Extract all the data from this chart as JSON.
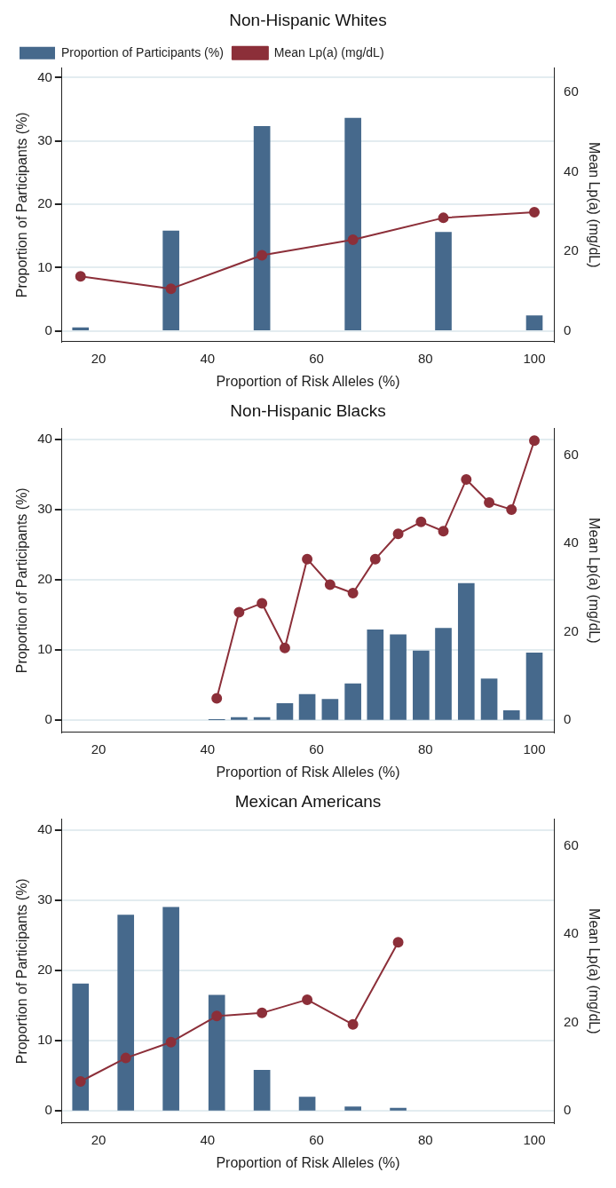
{
  "chart_data": [
    {
      "type": "bar",
      "title": "Non-Hispanic Whites",
      "xlabel": "Proportion of Risk Alleles (%)",
      "ylabel": "Proportion of Participants (%)",
      "y2label": "Mean Lp(a) (mg/dL)",
      "xlim": [
        13.3,
        103.6
      ],
      "xticks": [
        20,
        40,
        60,
        80,
        100
      ],
      "ylim": [
        -1.7,
        41.5
      ],
      "yticks": [
        0,
        10,
        20,
        30,
        40
      ],
      "y2lim": [
        -2.7,
        66
      ],
      "y2ticks": [
        0,
        20,
        40,
        60
      ],
      "grid": "y",
      "legend": "top left",
      "marker": "circle",
      "series": [
        {
          "name": "Proportion of Participants (%)",
          "color": "#46698c",
          "x": [
            16.7,
            33.3,
            50,
            66.7,
            83.3,
            100
          ],
          "values": [
            0.5,
            15.8,
            32.3,
            33.6,
            15.6,
            2.4
          ]
        },
        {
          "name": "Mean Lp(a) (mg/dL)",
          "type": "line",
          "axis": "y2",
          "color": "#8c2f39",
          "x": [
            16.7,
            33.3,
            50,
            66.7,
            83.3,
            100
          ],
          "values": [
            13.7,
            10.6,
            19.0,
            22.9,
            28.4,
            29.8
          ]
        }
      ]
    },
    {
      "type": "bar",
      "title": "Non-Hispanic Blacks",
      "xlabel": "Proportion of Risk Alleles (%)",
      "ylabel": "Proportion of Participants (%)",
      "y2label": "Mean Lp(a) (mg/dL)",
      "xlim": [
        13.3,
        103.6
      ],
      "xticks": [
        20,
        40,
        60,
        80,
        100
      ],
      "ylim": [
        -1.7,
        41.5
      ],
      "yticks": [
        0,
        10,
        20,
        30,
        40
      ],
      "y2lim": [
        -2.7,
        66
      ],
      "y2ticks": [
        0,
        20,
        40,
        60
      ],
      "grid": "y",
      "marker": "circle",
      "series": [
        {
          "color": "#46698c",
          "x": [
            41.7,
            45.8,
            50,
            54.2,
            58.3,
            62.5,
            66.7,
            70.8,
            75,
            79.2,
            83.3,
            87.5,
            91.7,
            95.8,
            100
          ],
          "values": [
            0.1,
            0.4,
            0.4,
            2.4,
            3.7,
            3.0,
            5.2,
            12.9,
            12.2,
            9.9,
            13.1,
            19.5,
            5.9,
            1.4,
            9.6
          ]
        },
        {
          "type": "line",
          "axis": "y2",
          "color": "#8c2f39",
          "x": [
            41.7,
            45.8,
            50,
            54.2,
            58.3,
            62.5,
            66.7,
            70.8,
            75,
            79.2,
            83.3,
            87.5,
            91.7,
            95.8,
            100
          ],
          "values": [
            5.0,
            24.5,
            26.5,
            16.4,
            36.5,
            30.7,
            28.8,
            36.5,
            42.2,
            44.9,
            42.8,
            54.5,
            49.3,
            47.7,
            63.3
          ]
        }
      ]
    },
    {
      "type": "bar",
      "title": "Mexican Americans",
      "xlabel": "Proportion of Risk Alleles (%)",
      "ylabel": "Proportion of Participants (%)",
      "y2label": "Mean Lp(a) (mg/dL)",
      "xlim": [
        13.3,
        103.6
      ],
      "xticks": [
        20,
        40,
        60,
        80,
        100
      ],
      "ylim": [
        -1.7,
        41.5
      ],
      "yticks": [
        0,
        10,
        20,
        30,
        40
      ],
      "y2lim": [
        -2.7,
        66
      ],
      "y2ticks": [
        0,
        20,
        40,
        60
      ],
      "grid": "y",
      "marker": "circle",
      "series": [
        {
          "color": "#46698c",
          "x": [
            16.7,
            25,
            33.3,
            41.7,
            50,
            58.3,
            66.7,
            75
          ],
          "values": [
            18.1,
            27.9,
            29.0,
            16.5,
            5.8,
            2.0,
            0.6,
            0.4
          ]
        },
        {
          "type": "line",
          "axis": "y2",
          "color": "#8c2f39",
          "x": [
            16.7,
            25,
            33.3,
            41.7,
            50,
            58.3,
            66.7,
            75
          ],
          "values": [
            6.7,
            12.0,
            15.6,
            21.5,
            22.2,
            25.2,
            19.6,
            38.2
          ]
        }
      ]
    }
  ]
}
